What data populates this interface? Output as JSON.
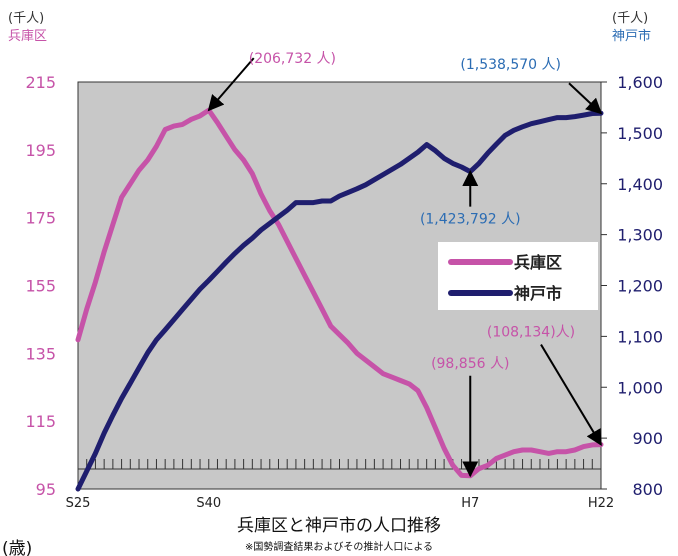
{
  "chart_data": {
    "type": "line",
    "title": "兵庫区と神戸市の人口推移",
    "note": "※国勢調査結果およびその推計人口による",
    "footer_fragment": "(歳)",
    "left_axis": {
      "unit": "(千人)",
      "series_label": "兵庫区",
      "ylim": [
        95,
        215
      ],
      "ticks": [
        "215",
        "195",
        "175",
        "155",
        "135",
        "115",
        "95"
      ],
      "tick_values": [
        215,
        195,
        175,
        155,
        135,
        115,
        95
      ]
    },
    "right_axis": {
      "unit": "(千人)",
      "series_label": "神戸市",
      "ylim": [
        800,
        1600
      ],
      "ticks": [
        "1,600",
        "1,500",
        "1,400",
        "1,300",
        "1,200",
        "1,100",
        "1,000",
        "900",
        "800"
      ],
      "tick_values": [
        1600,
        1500,
        1400,
        1300,
        1200,
        1100,
        1000,
        900,
        800
      ]
    },
    "x_axis": {
      "range": [
        1950,
        2010
      ],
      "ticks": [
        "S25",
        "S40",
        "H7",
        "H22"
      ],
      "tick_values": [
        1950,
        1965,
        1995,
        2010
      ]
    },
    "legend": {
      "position": "right",
      "items": [
        "兵庫区",
        "神戸市"
      ]
    },
    "colors": {
      "hyogo": "#c653a8",
      "kobe": "#1f1e6e",
      "plot_bg": "#c8c8c8",
      "annotation": "#2b6cb3"
    },
    "series": [
      {
        "name": "兵庫区",
        "axis": "left",
        "x": [
          1950,
          1951,
          1952,
          1953,
          1954,
          1955,
          1956,
          1957,
          1958,
          1959,
          1960,
          1961,
          1962,
          1963,
          1964,
          1965,
          1966,
          1967,
          1968,
          1969,
          1970,
          1971,
          1972,
          1973,
          1974,
          1975,
          1976,
          1977,
          1978,
          1979,
          1980,
          1981,
          1982,
          1983,
          1984,
          1985,
          1986,
          1987,
          1988,
          1989,
          1990,
          1991,
          1992,
          1993,
          1994,
          1995,
          1996,
          1997,
          1998,
          1999,
          2000,
          2001,
          2002,
          2003,
          2004,
          2005,
          2006,
          2007,
          2008,
          2009,
          2010
        ],
        "values": [
          139,
          148,
          156,
          165,
          173,
          181,
          185,
          189,
          192,
          196,
          201,
          202,
          202.5,
          204,
          205,
          206.7,
          203,
          199,
          195,
          192,
          188,
          182,
          177,
          173,
          168,
          163,
          158,
          153,
          148,
          143,
          140.5,
          138,
          135,
          133,
          131,
          129,
          128,
          127,
          126,
          124,
          119,
          113,
          107,
          102,
          99,
          98.9,
          101,
          102,
          104,
          105,
          106,
          106.5,
          106.5,
          106,
          105.5,
          106,
          106,
          106.5,
          107.5,
          108,
          108.1
        ]
      },
      {
        "name": "神戸市",
        "axis": "right",
        "x": [
          1950,
          1951,
          1952,
          1953,
          1954,
          1955,
          1956,
          1957,
          1958,
          1959,
          1960,
          1961,
          1962,
          1963,
          1964,
          1965,
          1966,
          1967,
          1968,
          1969,
          1970,
          1971,
          1972,
          1973,
          1974,
          1975,
          1976,
          1977,
          1978,
          1979,
          1980,
          1981,
          1982,
          1983,
          1984,
          1985,
          1986,
          1987,
          1988,
          1989,
          1990,
          1991,
          1992,
          1993,
          1994,
          1995,
          1996,
          1997,
          1998,
          1999,
          2000,
          2001,
          2002,
          2003,
          2004,
          2005,
          2006,
          2007,
          2008,
          2009,
          2010
        ],
        "values": [
          800,
          835,
          870,
          910,
          945,
          978,
          1008,
          1038,
          1068,
          1093,
          1113,
          1133,
          1153,
          1173,
          1193,
          1210,
          1228,
          1246,
          1263,
          1279,
          1293,
          1309,
          1322,
          1335,
          1348,
          1363,
          1363,
          1363,
          1366,
          1366,
          1376,
          1383,
          1390,
          1398,
          1408,
          1418,
          1428,
          1438,
          1450,
          1462,
          1477,
          1465,
          1450,
          1440,
          1433,
          1423.8,
          1440,
          1460,
          1478,
          1495,
          1505,
          1512,
          1518,
          1522,
          1526,
          1530,
          1530,
          1532,
          1535,
          1538,
          1538.6
        ]
      }
    ],
    "annotations": [
      {
        "label": "(206,732 人)",
        "series": "兵庫区",
        "x": 1965,
        "y": 206.7
      },
      {
        "label": "(1,538,570 人)",
        "series": "神戸市",
        "x": 2010,
        "y": 1538.6
      },
      {
        "label": "(1,423,792 人)",
        "series": "神戸市",
        "x": 1995,
        "y": 1423.8
      },
      {
        "label": "(98,856 人)",
        "series": "兵庫区",
        "x": 1995,
        "y": 98.9
      },
      {
        "label": "(108,134)人)",
        "series": "兵庫区",
        "x": 2010,
        "y": 108.1
      }
    ]
  }
}
